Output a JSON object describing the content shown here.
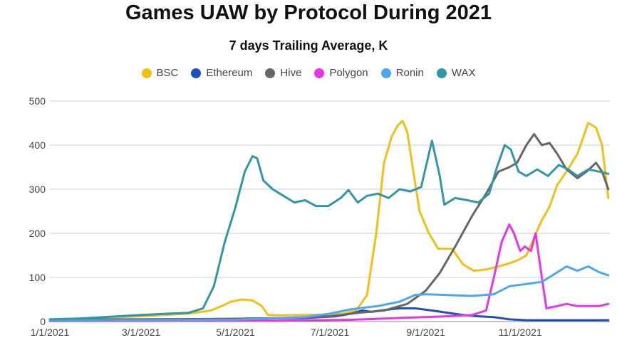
{
  "chart_data": {
    "type": "line",
    "title": "Games UAW by Protocol During 2021",
    "subtitle": "7 days Trailing Average, K",
    "xlabel": "",
    "ylabel": "",
    "ylim": [
      0,
      500
    ],
    "yticks": [
      "0",
      "100",
      "200",
      "300",
      "400",
      "500"
    ],
    "xticks": [
      "1/1/2021",
      "3/1/2021",
      "5/1/2021",
      "7/1/2021",
      "9/1/2021",
      "11/1/2021"
    ],
    "grid": true,
    "legend_position": "top-center",
    "series": [
      {
        "name": "BSC",
        "color": "#f2bf16",
        "points": [
          [
            "2021-01-01",
            5
          ],
          [
            "2021-02-01",
            8
          ],
          [
            "2021-03-01",
            12
          ],
          [
            "2021-04-01",
            18
          ],
          [
            "2021-04-15",
            25
          ],
          [
            "2021-04-22",
            35
          ],
          [
            "2021-04-28",
            45
          ],
          [
            "2021-05-05",
            50
          ],
          [
            "2021-05-12",
            48
          ],
          [
            "2021-05-18",
            35
          ],
          [
            "2021-05-22",
            15
          ],
          [
            "2021-06-01",
            14
          ],
          [
            "2021-06-15",
            15
          ],
          [
            "2021-07-01",
            16
          ],
          [
            "2021-07-10",
            18
          ],
          [
            "2021-07-18",
            25
          ],
          [
            "2021-07-25",
            60
          ],
          [
            "2021-07-31",
            200
          ],
          [
            "2021-08-05",
            360
          ],
          [
            "2021-08-10",
            420
          ],
          [
            "2021-08-14",
            445
          ],
          [
            "2021-08-17",
            455
          ],
          [
            "2021-08-20",
            430
          ],
          [
            "2021-08-24",
            340
          ],
          [
            "2021-08-28",
            250
          ],
          [
            "2021-09-03",
            200
          ],
          [
            "2021-09-09",
            165
          ],
          [
            "2021-09-18",
            165
          ],
          [
            "2021-09-25",
            130
          ],
          [
            "2021-10-02",
            115
          ],
          [
            "2021-10-10",
            118
          ],
          [
            "2021-10-18",
            125
          ],
          [
            "2021-10-25",
            132
          ],
          [
            "2021-10-31",
            140
          ],
          [
            "2021-11-05",
            150
          ],
          [
            "2021-11-10",
            190
          ],
          [
            "2021-11-15",
            230
          ],
          [
            "2021-11-20",
            260
          ],
          [
            "2021-11-25",
            310
          ],
          [
            "2021-12-01",
            340
          ],
          [
            "2021-12-08",
            380
          ],
          [
            "2021-12-15",
            450
          ],
          [
            "2021-12-20",
            440
          ],
          [
            "2021-12-24",
            400
          ],
          [
            "2021-12-28",
            280
          ]
        ]
      },
      {
        "name": "Ethereum",
        "color": "#1f4fbf",
        "points": [
          [
            "2021-01-01",
            4
          ],
          [
            "2021-03-01",
            5
          ],
          [
            "2021-05-01",
            6
          ],
          [
            "2021-06-15",
            8
          ],
          [
            "2021-07-05",
            12
          ],
          [
            "2021-07-15",
            18
          ],
          [
            "2021-07-22",
            25
          ],
          [
            "2021-07-28",
            22
          ],
          [
            "2021-08-05",
            26
          ],
          [
            "2021-08-15",
            30
          ],
          [
            "2021-08-25",
            30
          ],
          [
            "2021-09-05",
            25
          ],
          [
            "2021-09-15",
            20
          ],
          [
            "2021-09-25",
            15
          ],
          [
            "2021-10-05",
            12
          ],
          [
            "2021-10-15",
            10
          ],
          [
            "2021-10-25",
            5
          ],
          [
            "2021-11-05",
            3
          ],
          [
            "2021-12-01",
            3
          ],
          [
            "2021-12-28",
            3
          ]
        ]
      },
      {
        "name": "Hive",
        "color": "#666666",
        "points": [
          [
            "2021-01-01",
            3
          ],
          [
            "2021-04-01",
            5
          ],
          [
            "2021-06-01",
            8
          ],
          [
            "2021-07-01",
            12
          ],
          [
            "2021-07-20",
            20
          ],
          [
            "2021-08-05",
            25
          ],
          [
            "2021-08-20",
            40
          ],
          [
            "2021-09-01",
            70
          ],
          [
            "2021-09-10",
            110
          ],
          [
            "2021-09-20",
            170
          ],
          [
            "2021-10-01",
            240
          ],
          [
            "2021-10-10",
            290
          ],
          [
            "2021-10-18",
            340
          ],
          [
            "2021-10-25",
            350
          ],
          [
            "2021-10-30",
            360
          ],
          [
            "2021-11-05",
            400
          ],
          [
            "2021-11-10",
            425
          ],
          [
            "2021-11-15",
            400
          ],
          [
            "2021-11-20",
            405
          ],
          [
            "2021-11-25",
            380
          ],
          [
            "2021-12-01",
            345
          ],
          [
            "2021-12-08",
            325
          ],
          [
            "2021-12-14",
            340
          ],
          [
            "2021-12-20",
            360
          ],
          [
            "2021-12-24",
            340
          ],
          [
            "2021-12-28",
            300
          ]
        ]
      },
      {
        "name": "Polygon",
        "color": "#e535e8",
        "points": [
          [
            "2021-01-01",
            1
          ],
          [
            "2021-06-01",
            2
          ],
          [
            "2021-07-15",
            4
          ],
          [
            "2021-08-15",
            8
          ],
          [
            "2021-09-15",
            12
          ],
          [
            "2021-10-01",
            15
          ],
          [
            "2021-10-10",
            25
          ],
          [
            "2021-10-15",
            100
          ],
          [
            "2021-10-20",
            180
          ],
          [
            "2021-10-25",
            220
          ],
          [
            "2021-10-28",
            200
          ],
          [
            "2021-11-01",
            160
          ],
          [
            "2021-11-04",
            170
          ],
          [
            "2021-11-08",
            160
          ],
          [
            "2021-11-11",
            200
          ],
          [
            "2021-11-15",
            100
          ],
          [
            "2021-11-18",
            30
          ],
          [
            "2021-11-25",
            35
          ],
          [
            "2021-12-01",
            40
          ],
          [
            "2021-12-08",
            35
          ],
          [
            "2021-12-15",
            35
          ],
          [
            "2021-12-22",
            35
          ],
          [
            "2021-12-28",
            40
          ]
        ]
      },
      {
        "name": "Ronin",
        "color": "#4da6f0",
        "points": [
          [
            "2021-01-01",
            2
          ],
          [
            "2021-05-01",
            4
          ],
          [
            "2021-06-15",
            10
          ],
          [
            "2021-07-01",
            18
          ],
          [
            "2021-07-15",
            28
          ],
          [
            "2021-08-01",
            35
          ],
          [
            "2021-08-15",
            45
          ],
          [
            "2021-08-25",
            60
          ],
          [
            "2021-09-01",
            62
          ],
          [
            "2021-09-15",
            60
          ],
          [
            "2021-10-01",
            58
          ],
          [
            "2021-10-15",
            62
          ],
          [
            "2021-10-25",
            80
          ],
          [
            "2021-11-05",
            85
          ],
          [
            "2021-11-15",
            90
          ],
          [
            "2021-11-22",
            105
          ],
          [
            "2021-12-01",
            125
          ],
          [
            "2021-12-08",
            115
          ],
          [
            "2021-12-15",
            125
          ],
          [
            "2021-12-22",
            112
          ],
          [
            "2021-12-28",
            105
          ]
        ]
      },
      {
        "name": "WAX",
        "color": "#2f97a8",
        "points": [
          [
            "2021-01-01",
            5
          ],
          [
            "2021-01-20",
            7
          ],
          [
            "2021-02-05",
            10
          ],
          [
            "2021-03-01",
            15
          ],
          [
            "2021-03-20",
            18
          ],
          [
            "2021-04-01",
            20
          ],
          [
            "2021-04-10",
            30
          ],
          [
            "2021-04-17",
            80
          ],
          [
            "2021-04-24",
            180
          ],
          [
            "2021-05-01",
            260
          ],
          [
            "2021-05-07",
            340
          ],
          [
            "2021-05-12",
            375
          ],
          [
            "2021-05-15",
            370
          ],
          [
            "2021-05-19",
            320
          ],
          [
            "2021-05-25",
            300
          ],
          [
            "2021-06-01",
            285
          ],
          [
            "2021-06-08",
            270
          ],
          [
            "2021-06-15",
            275
          ],
          [
            "2021-06-22",
            262
          ],
          [
            "2021-06-30",
            262
          ],
          [
            "2021-07-08",
            280
          ],
          [
            "2021-07-13",
            298
          ],
          [
            "2021-07-19",
            270
          ],
          [
            "2021-07-25",
            285
          ],
          [
            "2021-08-01",
            290
          ],
          [
            "2021-08-08",
            280
          ],
          [
            "2021-08-15",
            300
          ],
          [
            "2021-08-22",
            295
          ],
          [
            "2021-08-29",
            305
          ],
          [
            "2021-09-05",
            410
          ],
          [
            "2021-09-10",
            330
          ],
          [
            "2021-09-13",
            265
          ],
          [
            "2021-09-20",
            280
          ],
          [
            "2021-09-28",
            275
          ],
          [
            "2021-10-05",
            270
          ],
          [
            "2021-10-12",
            290
          ],
          [
            "2021-10-17",
            350
          ],
          [
            "2021-10-22",
            400
          ],
          [
            "2021-10-26",
            390
          ],
          [
            "2021-10-31",
            340
          ],
          [
            "2021-11-05",
            330
          ],
          [
            "2021-11-12",
            345
          ],
          [
            "2021-11-19",
            330
          ],
          [
            "2021-11-26",
            355
          ],
          [
            "2021-12-02",
            345
          ],
          [
            "2021-12-08",
            330
          ],
          [
            "2021-12-15",
            345
          ],
          [
            "2021-12-22",
            340
          ],
          [
            "2021-12-28",
            335
          ]
        ]
      }
    ]
  }
}
